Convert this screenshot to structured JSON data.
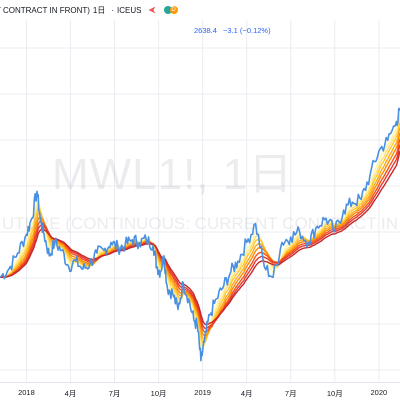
{
  "header": {
    "title": "T CONTRACT IN FRONT)",
    "interval": "1日",
    "exchange": "ICEUS",
    "dot_d_label": "D"
  },
  "quote": {
    "last": "2638.4",
    "change": "−3.1 (−0.12%)"
  },
  "watermark": {
    "symbol": "MWL1!, 1日",
    "description": "UTURE (CONTINUOUS: CURRENT CONTRACT IN FRONT)"
  },
  "colors": {
    "price": "#4a90e2",
    "ribbon": [
      "#fff59d",
      "#ffe082",
      "#ffca28",
      "#ffa726",
      "#fb8c00",
      "#f4511e",
      "#e53935",
      "#c62828"
    ],
    "grid": "#e9ecf2",
    "flag": "#ef5350"
  },
  "chart_data": {
    "type": "line",
    "title": "MWL1!, 1日",
    "x_ticks": [
      {
        "label": "2018",
        "x": 2018.0
      },
      {
        "label": "4月",
        "x": 2018.25
      },
      {
        "label": "7月",
        "x": 2018.5
      },
      {
        "label": "10月",
        "x": 2018.75
      },
      {
        "label": "2019",
        "x": 2019.0
      },
      {
        "label": "4月",
        "x": 2019.25
      },
      {
        "label": "7月",
        "x": 2019.5
      },
      {
        "label": "10月",
        "x": 2019.75
      },
      {
        "label": "2020",
        "x": 2020.0
      }
    ],
    "xlim": [
      2017.85,
      2020.12
    ],
    "ylim": [
      2150,
      2660
    ],
    "series": [
      {
        "name": "price",
        "x": [
          2017.85,
          2017.9,
          2017.95,
          2018.0,
          2018.03,
          2018.06,
          2018.08,
          2018.1,
          2018.13,
          2018.16,
          2018.2,
          2018.24,
          2018.28,
          2018.32,
          2018.36,
          2018.4,
          2018.44,
          2018.48,
          2018.52,
          2018.56,
          2018.6,
          2018.64,
          2018.68,
          2018.72,
          2018.74,
          2018.76,
          2018.78,
          2018.8,
          2018.83,
          2018.86,
          2018.89,
          2018.92,
          2018.95,
          2018.97,
          2018.99,
          2019.01,
          2019.04,
          2019.08,
          2019.12,
          2019.16,
          2019.2,
          2019.25,
          2019.3,
          2019.35,
          2019.4,
          2019.45,
          2019.5,
          2019.55,
          2019.6,
          2019.65,
          2019.7,
          2019.75,
          2019.8,
          2019.85,
          2019.9,
          2019.95,
          2020.0,
          2020.05,
          2020.1,
          2020.12
        ],
        "y": [
          2330,
          2345,
          2375,
          2410,
          2440,
          2490,
          2435,
          2410,
          2370,
          2395,
          2380,
          2350,
          2360,
          2345,
          2355,
          2375,
          2380,
          2395,
          2385,
          2390,
          2400,
          2395,
          2400,
          2390,
          2350,
          2340,
          2370,
          2310,
          2300,
          2270,
          2320,
          2290,
          2250,
          2240,
          2175,
          2210,
          2260,
          2290,
          2315,
          2340,
          2360,
          2395,
          2430,
          2350,
          2330,
          2395,
          2405,
          2415,
          2395,
          2425,
          2440,
          2415,
          2455,
          2470,
          2475,
          2520,
          2565,
          2585,
          2620,
          2640
        ]
      }
    ]
  }
}
